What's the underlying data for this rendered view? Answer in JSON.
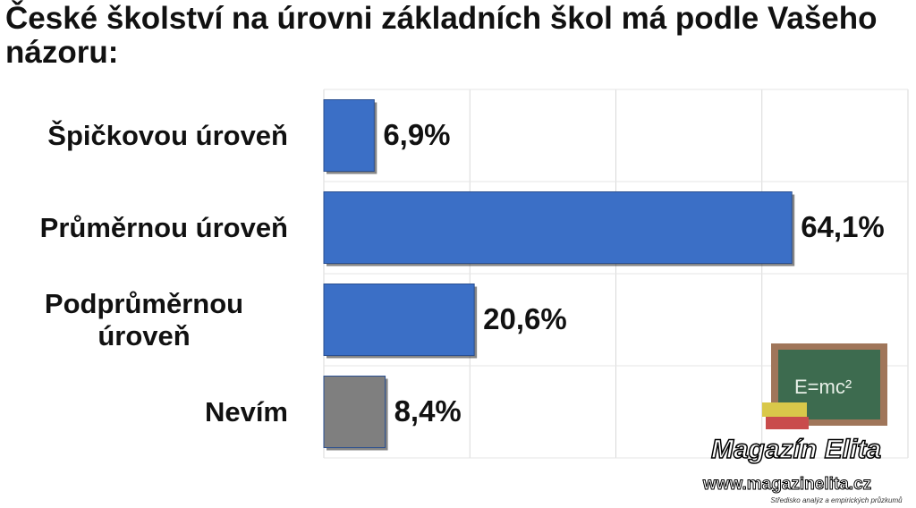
{
  "chart_data": {
    "type": "hbar",
    "title": "České školství na úrovni základních škol má podle Vašeho názoru:",
    "categories": [
      "Špičkovou úroveň",
      "Průměrnou úroveň",
      "Podprůměrnou úroveň",
      "Nevím"
    ],
    "values": [
      6.9,
      64.1,
      20.6,
      8.4
    ],
    "value_labels": [
      "6,9%",
      "64,1%",
      "20,6%",
      "8,4%"
    ],
    "colors": [
      "#3b6fc6",
      "#3b6fc6",
      "#3b6fc6",
      "#7f7f7f"
    ],
    "xlim": [
      0,
      80
    ],
    "xticks": [
      0,
      20,
      40,
      60,
      80
    ],
    "grid": true
  },
  "logo": {
    "board_text": "E=mc²",
    "name": "Magazín Elita",
    "url": "www.magazinelita.cz",
    "tagline": "Středisko analýz a empirických průzkumů"
  }
}
